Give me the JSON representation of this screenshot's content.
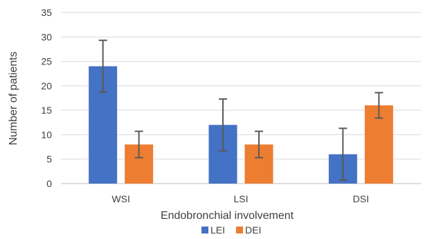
{
  "chart_data": {
    "type": "bar",
    "title": "",
    "xlabel": "Endobronchial  involvement",
    "ylabel": "Number of patients",
    "categories": [
      "WSI",
      "LSI",
      "DSI"
    ],
    "series": [
      {
        "name": "LEI",
        "color": "#4472C4",
        "values": [
          24,
          12,
          6
        ],
        "error": [
          5.3,
          5.3,
          5.3
        ]
      },
      {
        "name": "DEI",
        "color": "#ED7D31",
        "values": [
          8,
          8,
          16
        ],
        "error": [
          2.7,
          2.7,
          2.6
        ]
      }
    ],
    "ylim": [
      0,
      35
    ],
    "yticks": [
      0,
      5,
      10,
      15,
      20,
      25,
      30,
      35
    ],
    "grid": true,
    "legend_position": "bottom"
  }
}
